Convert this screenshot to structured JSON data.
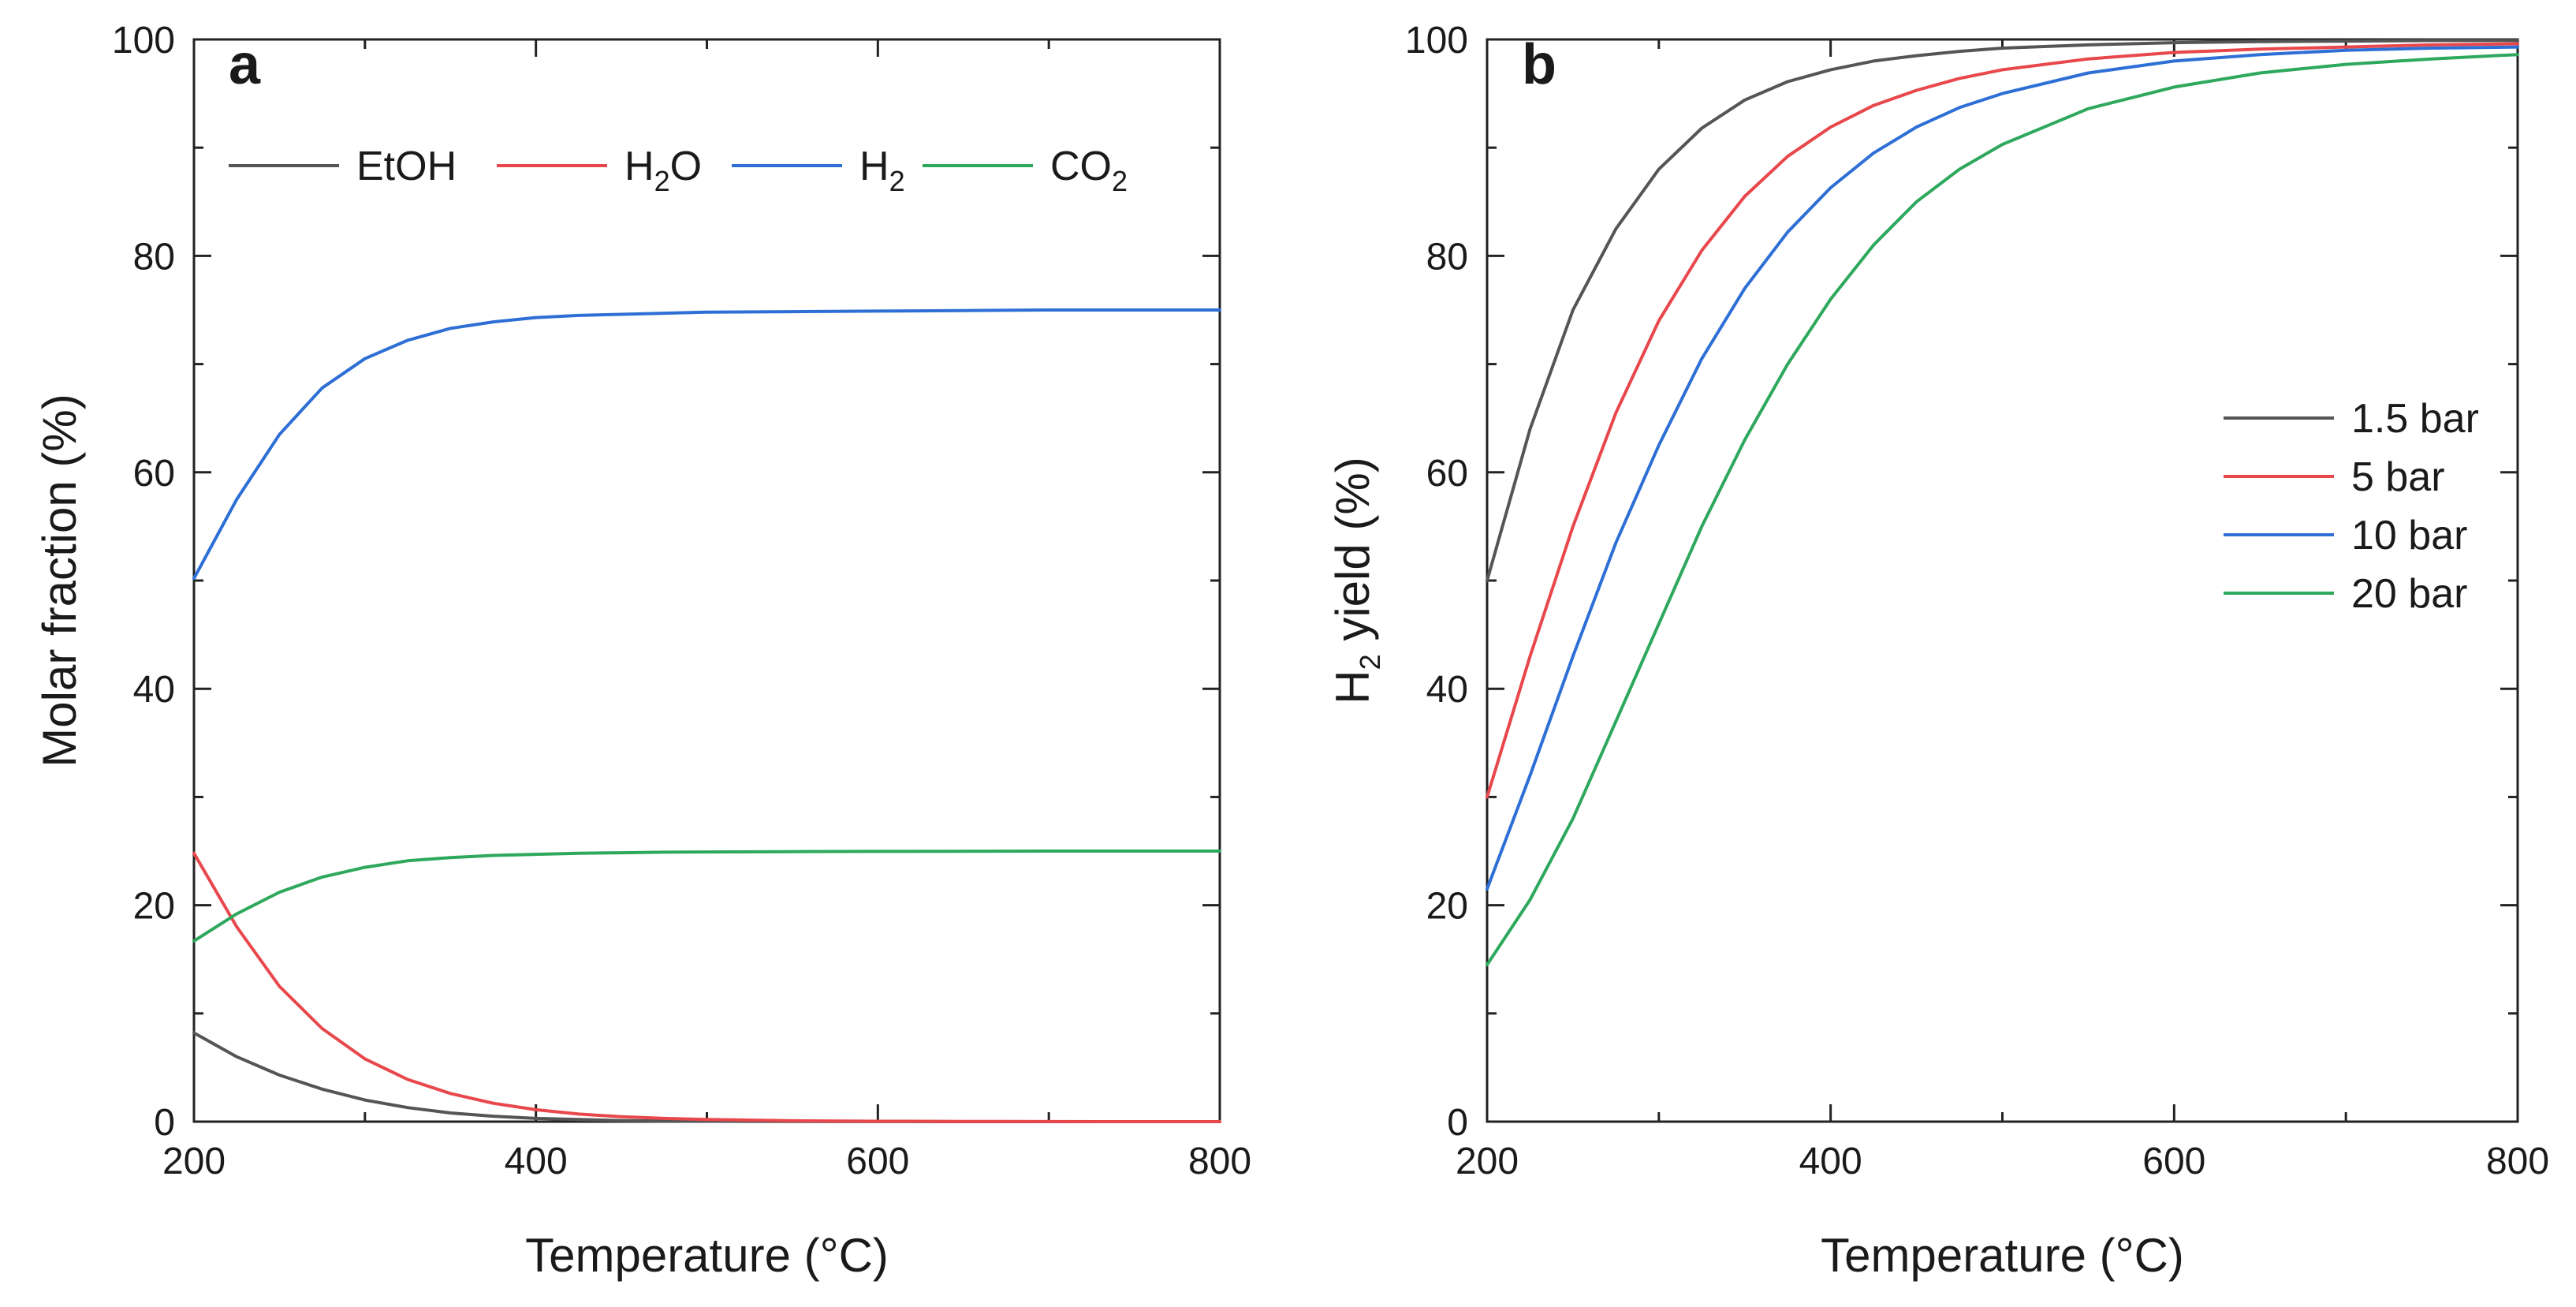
{
  "chart_data": [
    {
      "type": "line",
      "panel_label": "a",
      "title": "",
      "xlabel": "Temperature (°C)",
      "ylabel": "Molar fraction (%)",
      "xlim": [
        200,
        800
      ],
      "ylim": [
        0,
        100
      ],
      "xticks": [
        "200",
        "400",
        "600",
        "800"
      ],
      "yticks": [
        "0",
        "20",
        "40",
        "60",
        "80",
        "100"
      ],
      "legend_position": "top",
      "x": [
        200,
        225,
        250,
        275,
        300,
        325,
        350,
        375,
        400,
        425,
        450,
        475,
        500,
        550,
        600,
        650,
        700,
        750,
        800
      ],
      "series": [
        {
          "name": "EtOH",
          "legend_base": "EtOH",
          "legend_sub": "",
          "legend_tail": "",
          "color": "#555555",
          "values": [
            8.2,
            6.0,
            4.3,
            3.0,
            2.0,
            1.3,
            0.8,
            0.5,
            0.3,
            0.2,
            0.1,
            0.06,
            0.04,
            0.02,
            0.01,
            0,
            0,
            0,
            0
          ]
        },
        {
          "name": "H2O",
          "legend_base": "H",
          "legend_sub": "2",
          "legend_tail": "O",
          "color": "#e8474c",
          "values": [
            24.8,
            18.0,
            12.5,
            8.6,
            5.8,
            3.9,
            2.6,
            1.7,
            1.1,
            0.7,
            0.45,
            0.3,
            0.2,
            0.08,
            0.04,
            0.02,
            0.01,
            0,
            0
          ]
        },
        {
          "name": "H2",
          "legend_base": "H",
          "legend_sub": "2",
          "legend_tail": "",
          "color": "#2e6fd6",
          "values": [
            50.2,
            57.5,
            63.5,
            67.8,
            70.5,
            72.2,
            73.3,
            73.9,
            74.3,
            74.5,
            74.6,
            74.7,
            74.8,
            74.85,
            74.9,
            74.95,
            75.0,
            75.0,
            75.0
          ]
        },
        {
          "name": "CO2",
          "legend_base": "CO",
          "legend_sub": "2",
          "legend_tail": "",
          "color": "#2ea85c",
          "values": [
            16.7,
            19.2,
            21.2,
            22.6,
            23.5,
            24.1,
            24.4,
            24.6,
            24.7,
            24.8,
            24.85,
            24.9,
            24.92,
            24.95,
            24.97,
            24.98,
            25.0,
            25.0,
            25.0
          ]
        }
      ]
    },
    {
      "type": "line",
      "panel_label": "b",
      "title": "",
      "xlabel": "Temperature (°C)",
      "ylabel": "H2 yield (%)",
      "ylabel_base": "H",
      "ylabel_sub": "2",
      "ylabel_tail": " yield (%)",
      "xlim": [
        200,
        800
      ],
      "ylim": [
        0,
        100
      ],
      "xticks": [
        "200",
        "400",
        "600",
        "800"
      ],
      "yticks": [
        "0",
        "20",
        "40",
        "60",
        "80",
        "100"
      ],
      "legend_position": "right",
      "x": [
        200,
        225,
        250,
        275,
        300,
        325,
        350,
        375,
        400,
        425,
        450,
        475,
        500,
        550,
        600,
        650,
        700,
        750,
        800
      ],
      "series": [
        {
          "name": "1.5 bar",
          "color": "#555555",
          "values": [
            50,
            64,
            75,
            82.5,
            88,
            91.8,
            94.4,
            96.1,
            97.2,
            98.0,
            98.5,
            98.9,
            99.2,
            99.5,
            99.7,
            99.8,
            99.85,
            99.9,
            99.9
          ]
        },
        {
          "name": "5 bar",
          "color": "#e8474c",
          "values": [
            30,
            43,
            55,
            65.5,
            74,
            80.5,
            85.5,
            89.2,
            91.9,
            93.9,
            95.3,
            96.4,
            97.2,
            98.2,
            98.8,
            99.1,
            99.3,
            99.5,
            99.6
          ]
        },
        {
          "name": "10 bar",
          "color": "#2e6fd6",
          "values": [
            21.5,
            32,
            43,
            53.5,
            62.5,
            70.5,
            77,
            82.2,
            86.3,
            89.5,
            91.9,
            93.7,
            95.0,
            96.9,
            98.0,
            98.6,
            99.0,
            99.2,
            99.3
          ]
        },
        {
          "name": "20 bar",
          "color": "#2ea85c",
          "values": [
            14.5,
            20.5,
            28,
            37,
            46,
            55,
            63,
            70,
            76,
            81,
            85,
            88,
            90.3,
            93.6,
            95.6,
            96.9,
            97.7,
            98.2,
            98.6
          ]
        }
      ]
    }
  ]
}
